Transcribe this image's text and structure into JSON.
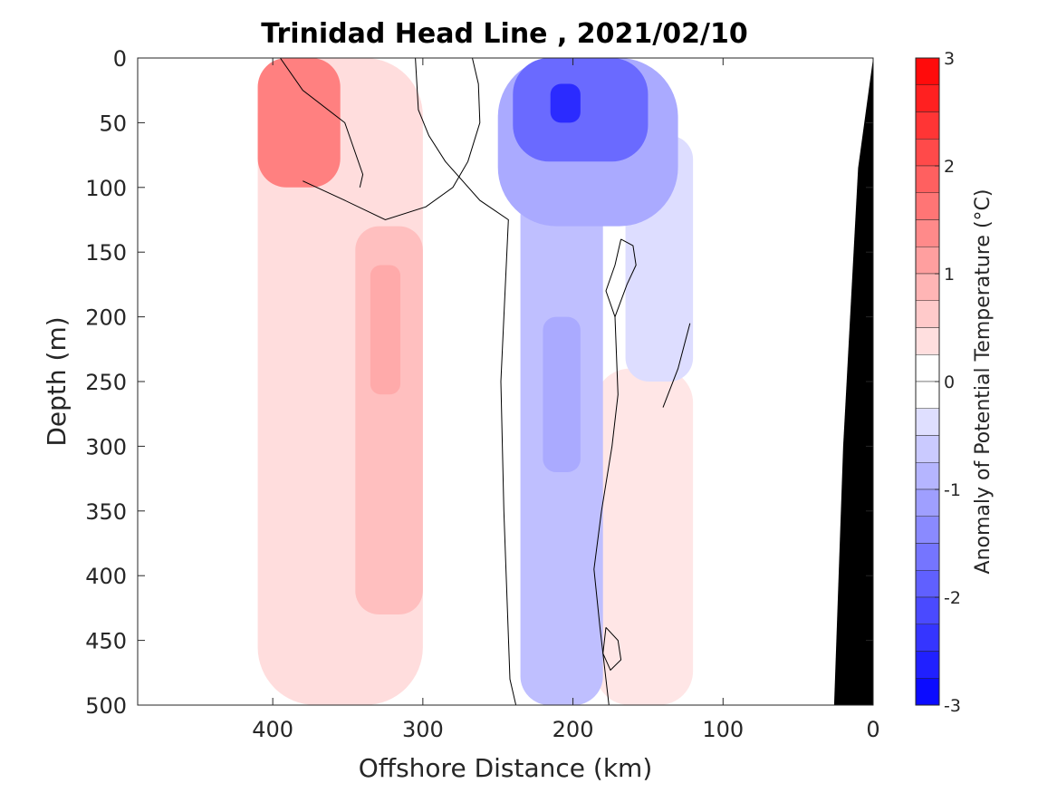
{
  "chart_data": {
    "type": "heatmap",
    "subtype": "filled-contour section",
    "title": "Trinidad Head Line , 2021/02/10",
    "xlabel": "Offshore Distance (km)",
    "ylabel": "Depth (m)",
    "xlim": [
      490,
      0
    ],
    "x_reversed": true,
    "ylim": [
      0,
      500
    ],
    "y_reversed": true,
    "x_ticks": [
      "400",
      "300",
      "200",
      "100",
      "0"
    ],
    "x_tick_values": [
      400,
      300,
      200,
      100,
      0
    ],
    "y_ticks": [
      "0",
      "50",
      "100",
      "150",
      "200",
      "250",
      "300",
      "350",
      "400",
      "450",
      "500"
    ],
    "y_tick_values": [
      0,
      50,
      100,
      150,
      200,
      250,
      300,
      350,
      400,
      450,
      500
    ],
    "data_extent_km": [
      410,
      120
    ],
    "colorbar": {
      "label": "Anomaly of Potential Temperature (°C)",
      "range": [
        -3,
        3
      ],
      "step": 0.25,
      "ticks": [
        "3",
        "2",
        "1",
        "0",
        "-1",
        "-2",
        "-3"
      ],
      "tick_values": [
        3,
        2,
        1,
        0,
        -1,
        -2,
        -3
      ],
      "negative_color": "#0000ff",
      "zero_color": "#ffffff",
      "positive_color": "#ff0000"
    },
    "zero_contour_color": "#000000",
    "bathymetry_color": "#000000",
    "bathymetry": [
      {
        "x": 0,
        "depth": 0
      },
      {
        "x": 10,
        "depth": 85
      },
      {
        "x": 20,
        "depth": 300
      },
      {
        "x": 26,
        "depth": 500
      }
    ],
    "anomaly_features": [
      {
        "x": [
          410,
          355
        ],
        "depth": [
          0,
          100
        ],
        "value": 1.5
      },
      {
        "x": [
          410,
          300
        ],
        "depth": [
          0,
          500
        ],
        "value": 0.4
      },
      {
        "x": [
          345,
          300
        ],
        "depth": [
          130,
          430
        ],
        "value": 0.75
      },
      {
        "x": [
          335,
          315
        ],
        "depth": [
          160,
          260
        ],
        "value": 1.0
      },
      {
        "x": [
          250,
          130
        ],
        "depth": [
          0,
          130
        ],
        "value": -1.0
      },
      {
        "x": [
          240,
          150
        ],
        "depth": [
          0,
          80
        ],
        "value": -1.75
      },
      {
        "x": [
          215,
          195
        ],
        "depth": [
          20,
          50
        ],
        "value": -2.5
      },
      {
        "x": [
          235,
          180
        ],
        "depth": [
          100,
          500
        ],
        "value": -0.75
      },
      {
        "x": [
          220,
          195
        ],
        "depth": [
          200,
          320
        ],
        "value": -1.0
      },
      {
        "x": [
          165,
          120
        ],
        "depth": [
          60,
          250
        ],
        "value": -0.4
      },
      {
        "x": [
          185,
          120
        ],
        "depth": [
          240,
          500
        ],
        "value": 0.3
      }
    ]
  }
}
